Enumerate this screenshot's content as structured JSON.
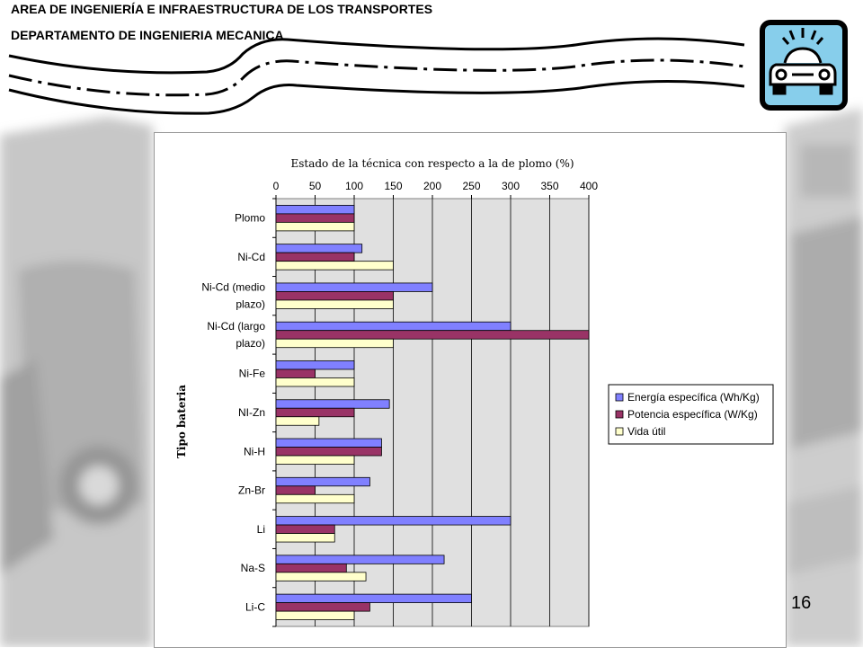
{
  "header": {
    "line1": "AREA DE INGENIERÍA E INFRAESTRUCTURA DE LOS TRANSPORTES",
    "line2": "DEPARTAMENTO DE INGENIERIA MECANICA"
  },
  "logo": {
    "icon": "car-icon",
    "background": "#87CEEB"
  },
  "page_number": "16",
  "chart_data": {
    "type": "bar",
    "orientation": "horizontal",
    "title": "Estado de la técnica con respecto a la de plomo (%)",
    "ylabel": "Tipo bateria",
    "xlabel": "",
    "xlim": [
      0,
      400
    ],
    "xticks": [
      0,
      50,
      100,
      150,
      200,
      250,
      300,
      350,
      400
    ],
    "grid": true,
    "legend_position": "right",
    "categories": [
      [
        "Plomo"
      ],
      [
        "Ni-Cd"
      ],
      [
        "Ni-Cd (medio",
        "plazo)"
      ],
      [
        "Ni-Cd (largo",
        "plazo)"
      ],
      [
        "Ni-Fe"
      ],
      [
        "NI-Zn"
      ],
      [
        "Ni-H"
      ],
      [
        "Zn-Br"
      ],
      [
        "Li"
      ],
      [
        "Na-S"
      ],
      [
        "Li-C"
      ]
    ],
    "series": [
      {
        "name": "Energía específica (Wh/Kg)",
        "color": "#8080FF",
        "values": [
          100,
          110,
          200,
          300,
          100,
          145,
          135,
          120,
          300,
          215,
          250
        ]
      },
      {
        "name": "Potencia específica (W/Kg)",
        "color": "#993366",
        "values": [
          100,
          100,
          150,
          400,
          50,
          100,
          135,
          50,
          75,
          90,
          120
        ]
      },
      {
        "name": "Vida útil",
        "color": "#FFFFCC",
        "values": [
          100,
          150,
          150,
          150,
          100,
          55,
          100,
          100,
          75,
          115,
          100
        ]
      }
    ]
  }
}
